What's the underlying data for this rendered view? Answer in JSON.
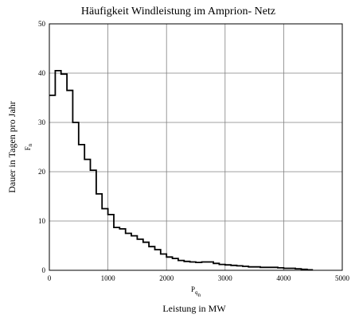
{
  "chart_data": {
    "type": "line",
    "step": true,
    "title": "Häufigkeit Windleistung im Amprion- Netz",
    "xlabel": "Leistung in MW",
    "ylabel": "Dauer in Tagen pro Jahr",
    "x_symbol": {
      "base": "P",
      "sub": "q",
      "subsub": "n"
    },
    "y_symbol": {
      "base": "F",
      "sub": "n"
    },
    "xlim": [
      0,
      5000
    ],
    "ylim": [
      0,
      50
    ],
    "x_ticks": [
      "0",
      "1000",
      "2000",
      "3000",
      "4000",
      "5000"
    ],
    "y_ticks": [
      "0",
      "10",
      "20",
      "30",
      "40",
      "50"
    ],
    "grid": true,
    "series": [
      {
        "bin_edges": [
          0,
          100,
          200,
          300,
          400,
          500,
          600,
          700,
          800,
          900,
          1000,
          1100,
          1200,
          1300,
          1400,
          1500,
          1600,
          1700,
          1800,
          1900,
          2000,
          2100,
          2200,
          2300,
          2400,
          2500,
          2600,
          2700,
          2800,
          2900,
          3000,
          3100,
          3200,
          3300,
          3400,
          3500,
          3600,
          3700,
          3800,
          3900,
          4000,
          4100,
          4200,
          4300,
          4400,
          4500
        ],
        "values": [
          35.5,
          40.5,
          39.8,
          36.5,
          30.0,
          25.5,
          22.5,
          20.3,
          15.5,
          12.5,
          11.3,
          8.7,
          8.4,
          7.5,
          7.0,
          6.3,
          5.7,
          4.8,
          4.2,
          3.3,
          2.7,
          2.4,
          2.0,
          1.8,
          1.7,
          1.6,
          1.7,
          1.7,
          1.4,
          1.2,
          1.1,
          1.0,
          0.9,
          0.8,
          0.7,
          0.7,
          0.6,
          0.6,
          0.6,
          0.5,
          0.4,
          0.4,
          0.3,
          0.2,
          0.1
        ]
      }
    ]
  }
}
